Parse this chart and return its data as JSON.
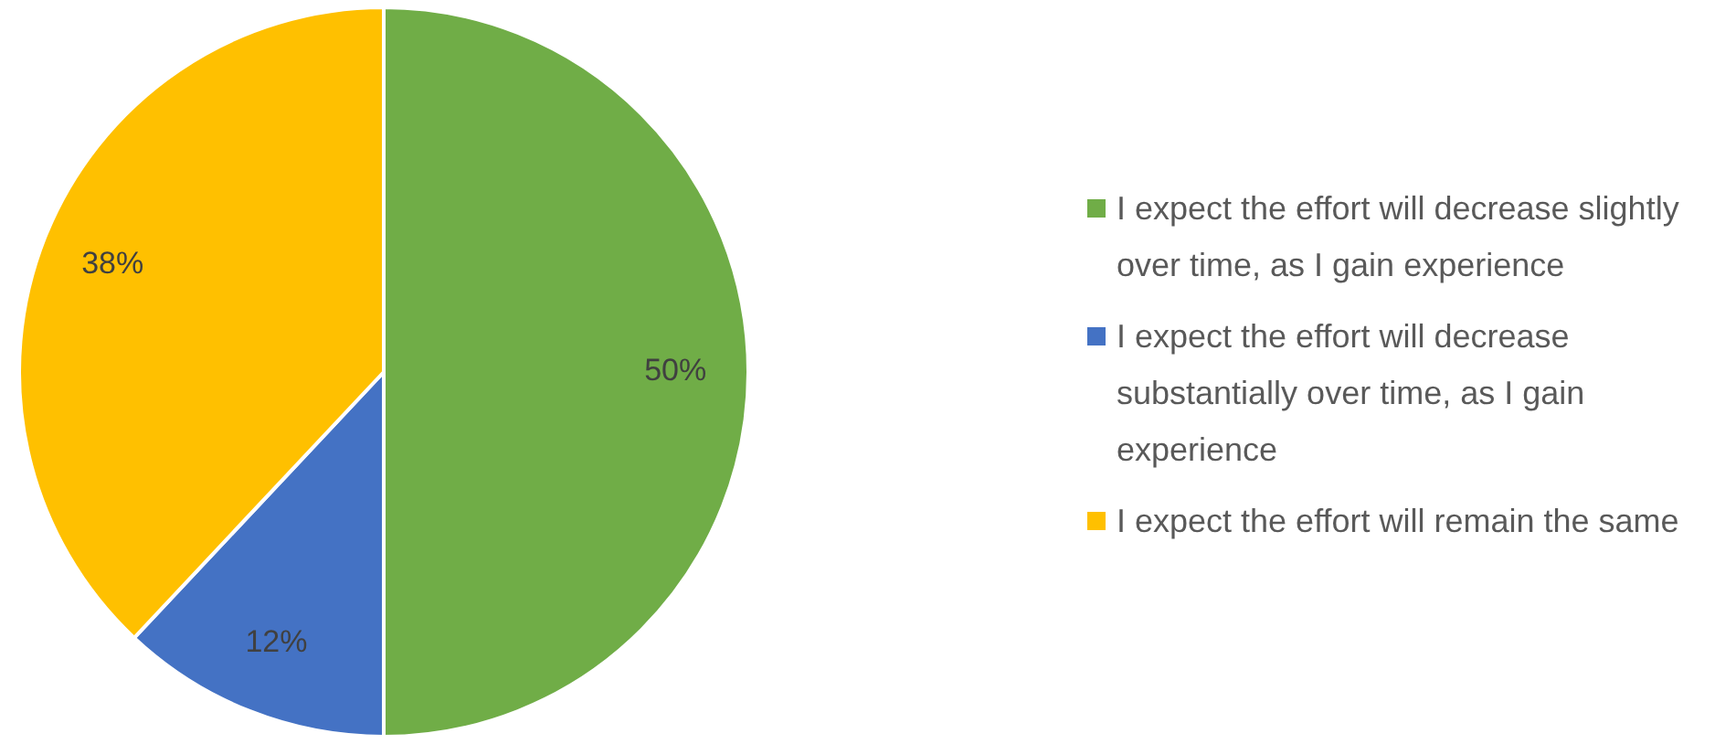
{
  "chart_data": {
    "type": "pie",
    "categories": [
      "I expect the effort will decrease slightly over time, as I gain experience",
      "I expect the effort will decrease substantially over time, as I gain experience",
      "I expect the effort will remain the same"
    ],
    "values": [
      50,
      12,
      38
    ],
    "colors": [
      "#70ad47",
      "#4472c4",
      "#ffc000"
    ],
    "value_labels": [
      "50%",
      "12%",
      "38%"
    ],
    "legend": "right"
  }
}
